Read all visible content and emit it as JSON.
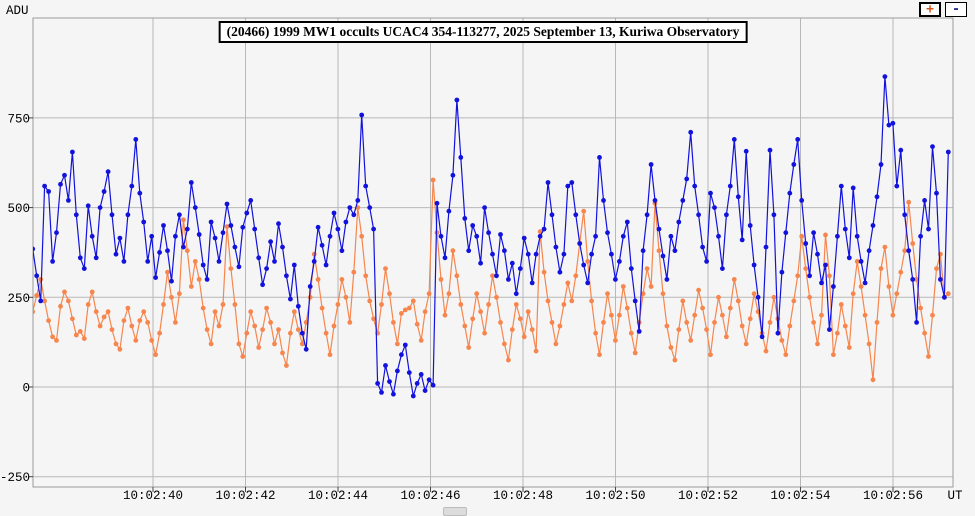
{
  "header": {
    "title": "(20466) 1999 MW1 occults UCAC4 354-113277, 2025 September 13, Kuriwa Observatory",
    "zoom_in_label": "+",
    "zoom_out_label": "-"
  },
  "axes": {
    "y_label": "ADU",
    "x_label": "UT"
  },
  "colors": {
    "background": "#f5f5f5",
    "grid": "#b8b8b8",
    "border": "#9a9a9a",
    "tick": "#444444",
    "text": "#000000",
    "series_blue": "#1212dd",
    "series_orange": "#f6864d"
  },
  "chart_data": {
    "type": "line",
    "title": "(20466) 1999 MW1 occults UCAC4 354-113277, 2025 September 13, Kuriwa Observatory",
    "xlabel": "UT",
    "ylabel": "ADU",
    "ylim": [
      -250,
      1030
    ],
    "grid": true,
    "legend": "none",
    "y_tick_values": [
      750,
      500,
      250,
      0,
      -250
    ],
    "x_tick_labels": [
      "10:02:40",
      "10:02:42",
      "10:02:44",
      "10:02:46",
      "10:02:48",
      "10:02:50",
      "10:02:52",
      "10:02:54",
      "10:02:56"
    ],
    "x_tick_seconds": [
      40,
      42,
      44,
      46,
      48,
      50,
      52,
      54,
      56
    ],
    "x_start_seconds_after_10_02": 37.4,
    "x_step_seconds": 0.0857,
    "series": [
      {
        "name": "orange",
        "color": "#f6864d",
        "values": [
          210,
          255,
          300,
          240,
          185,
          140,
          130,
          225,
          265,
          240,
          190,
          145,
          155,
          135,
          230,
          265,
          210,
          170,
          195,
          210,
          160,
          120,
          105,
          185,
          220,
          170,
          130,
          185,
          210,
          180,
          130,
          90,
          150,
          230,
          320,
          250,
          180,
          260,
          466,
          380,
          280,
          350,
          300,
          220,
          160,
          120,
          210,
          170,
          230,
          447,
          330,
          230,
          120,
          85,
          150,
          210,
          170,
          110,
          160,
          220,
          180,
          120,
          160,
          95,
          60,
          150,
          210,
          160,
          120,
          180,
          250,
          370,
          300,
          220,
          150,
          90,
          170,
          230,
          300,
          250,
          180,
          320,
          500,
          420,
          310,
          240,
          190,
          150,
          230,
          330,
          260,
          180,
          120,
          205,
          215,
          220,
          240,
          175,
          130,
          210,
          260,
          577,
          430,
          300,
          200,
          260,
          380,
          310,
          230,
          170,
          110,
          190,
          260,
          210,
          150,
          230,
          310,
          250,
          180,
          120,
          75,
          160,
          230,
          190,
          140,
          210,
          160,
          100,
          433,
          320,
          240,
          180,
          120,
          170,
          230,
          290,
          240,
          310,
          400,
          490,
          350,
          240,
          150,
          90,
          180,
          260,
          200,
          130,
          200,
          280,
          220,
          150,
          95,
          180,
          260,
          330,
          280,
          512,
          380,
          260,
          170,
          110,
          75,
          160,
          240,
          180,
          130,
          200,
          270,
          220,
          160,
          90,
          180,
          250,
          200,
          140,
          220,
          300,
          240,
          170,
          120,
          190,
          260,
          210,
          150,
          100,
          180,
          250,
          190,
          130,
          90,
          170,
          240,
          310,
          420,
          330,
          250,
          180,
          120,
          200,
          424,
          310,
          90,
          150,
          230,
          170,
          110,
          260,
          350,
          280,
          200,
          120,
          20,
          180,
          330,
          390,
          280,
          200,
          260,
          320,
          380,
          515,
          400,
          300,
          220,
          150,
          85,
          200,
          330,
          370,
          250,
          260
        ]
      },
      {
        "name": "blue",
        "color": "#1212dd",
        "values": [
          385,
          310,
          240,
          560,
          545,
          350,
          430,
          565,
          590,
          520,
          655,
          480,
          360,
          330,
          505,
          420,
          360,
          500,
          545,
          600,
          480,
          370,
          415,
          350,
          480,
          560,
          690,
          540,
          460,
          350,
          420,
          305,
          375,
          450,
          380,
          295,
          420,
          480,
          390,
          440,
          570,
          500,
          425,
          340,
          300,
          460,
          415,
          350,
          430,
          510,
          450,
          390,
          335,
          445,
          485,
          520,
          440,
          360,
          285,
          330,
          405,
          350,
          455,
          390,
          310,
          245,
          340,
          225,
          150,
          105,
          280,
          350,
          445,
          395,
          340,
          420,
          485,
          440,
          380,
          460,
          500,
          480,
          520,
          758,
          560,
          500,
          440,
          10,
          -15,
          60,
          15,
          -20,
          45,
          90,
          117,
          40,
          -25,
          10,
          35,
          -10,
          20,
          5,
          512,
          420,
          360,
          490,
          590,
          800,
          640,
          470,
          380,
          450,
          420,
          345,
          500,
          430,
          370,
          310,
          425,
          380,
          300,
          345,
          260,
          330,
          415,
          370,
          290,
          370,
          420,
          440,
          570,
          480,
          390,
          320,
          370,
          560,
          570,
          480,
          400,
          340,
          290,
          370,
          420,
          640,
          520,
          430,
          370,
          300,
          350,
          420,
          460,
          330,
          240,
          155,
          380,
          480,
          620,
          520,
          440,
          365,
          300,
          420,
          380,
          460,
          520,
          580,
          710,
          560,
          480,
          390,
          350,
          540,
          500,
          420,
          330,
          480,
          560,
          690,
          530,
          410,
          657,
          450,
          340,
          250,
          140,
          390,
          660,
          480,
          150,
          320,
          430,
          540,
          620,
          690,
          520,
          400,
          310,
          430,
          370,
          290,
          340,
          160,
          280,
          420,
          560,
          440,
          360,
          555,
          420,
          350,
          290,
          380,
          450,
          530,
          620,
          865,
          730,
          735,
          560,
          660,
          480,
          380,
          300,
          180,
          420,
          520,
          440,
          670,
          540,
          300,
          250,
          655
        ]
      }
    ]
  }
}
